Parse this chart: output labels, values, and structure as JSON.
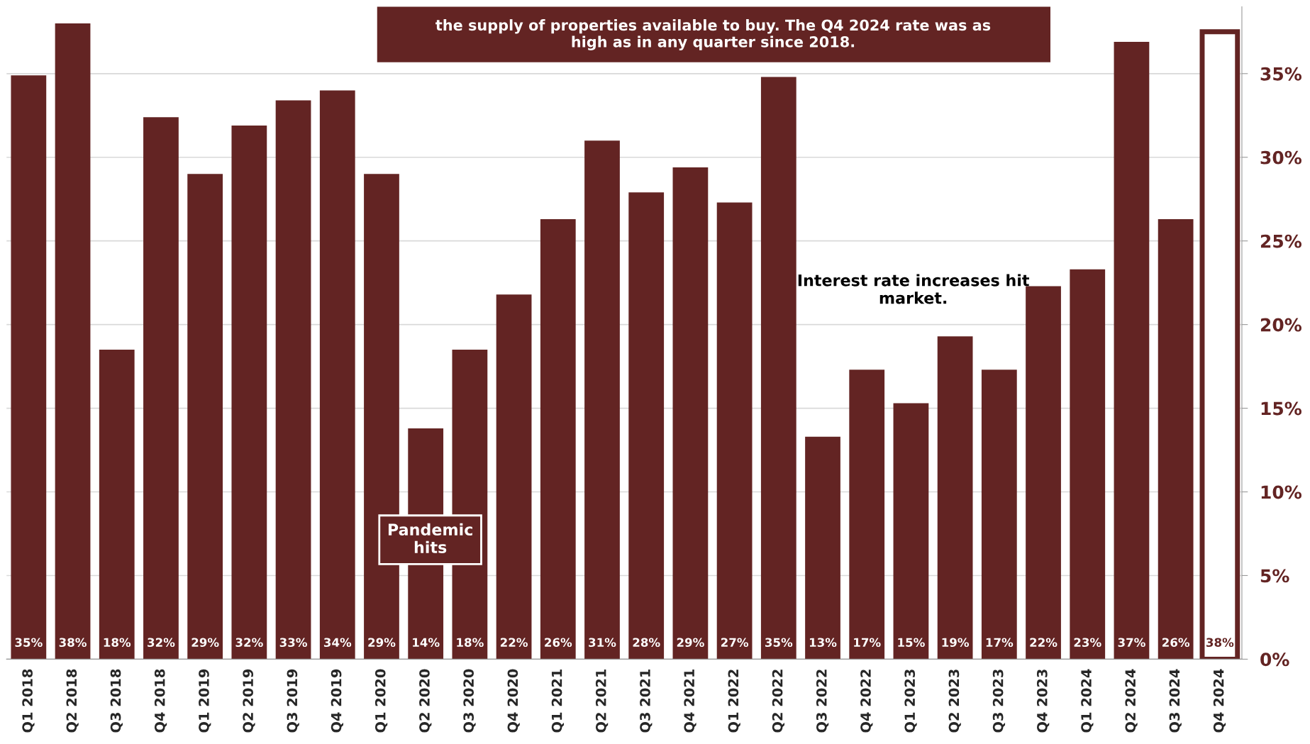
{
  "chart_data": {
    "type": "bar",
    "title": "the supply of properties available to buy. The Q4 2024 rate was as high as in any quarter since 2018.",
    "categories": [
      "Q1 2018",
      "Q2 2018",
      "Q3 2018",
      "Q4 2018",
      "Q1 2019",
      "Q2 2019",
      "Q3 2019",
      "Q4 2019",
      "Q1 2020",
      "Q2 2020",
      "Q3 2020",
      "Q4 2020",
      "Q1 2021",
      "Q2 2021",
      "Q3 2021",
      "Q4 2021",
      "Q1 2022",
      "Q2 2022",
      "Q3 2022",
      "Q4 2022",
      "Q1 2023",
      "Q2 2023",
      "Q3 2023",
      "Q4 2023",
      "Q1 2024",
      "Q2 2024",
      "Q3 2024",
      "Q4 2024"
    ],
    "series": [
      {
        "color": "#632423",
        "colors": [
          "#632423",
          "#632423",
          "#632423",
          "#632423",
          "#632423",
          "#632423",
          "#632423",
          "#632423",
          "#632423",
          "#632423",
          "#632423",
          "#632423",
          "#632423",
          "#632423",
          "#632423",
          "#632423",
          "#632423",
          "#632423",
          "#632423",
          "#632423",
          "#632423",
          "#632423",
          "#632423",
          "#632423",
          "#632423",
          "#632423",
          "#632423",
          "#ffffff"
        ],
        "values": [
          34.9,
          38.0,
          18.5,
          32.4,
          29.0,
          31.9,
          33.4,
          34.0,
          29.0,
          13.8,
          18.5,
          21.8,
          26.3,
          31.0,
          27.9,
          29.4,
          27.3,
          34.8,
          13.3,
          17.3,
          15.3,
          19.3,
          17.3,
          22.3,
          23.3,
          36.9,
          26.3,
          37.5
        ],
        "value_labels": [
          "35%",
          "38%",
          "18%",
          "32%",
          "29%",
          "32%",
          "33%",
          "34%",
          "29%",
          "14%",
          "18%",
          "22%",
          "26%",
          "31%",
          "28%",
          "29%",
          "27%",
          "35%",
          "13%",
          "17%",
          "15%",
          "19%",
          "17%",
          "22%",
          "23%",
          "37%",
          "26%",
          "38%"
        ]
      }
    ],
    "annotations": [
      "Pandemic hits",
      "Interest rate increases hit market."
    ],
    "ylim": [
      0,
      39
    ],
    "yticks": [
      {
        "value": 0,
        "label": "0%"
      },
      {
        "value": 5,
        "label": "5%"
      },
      {
        "value": 10,
        "label": "10%"
      },
      {
        "value": 15,
        "label": "15%"
      },
      {
        "value": 20,
        "label": "20%"
      },
      {
        "value": 25,
        "label": "25%"
      },
      {
        "value": 30,
        "label": "30%"
      },
      {
        "value": 35,
        "label": "35%"
      }
    ],
    "grid": "y",
    "legend": false
  }
}
